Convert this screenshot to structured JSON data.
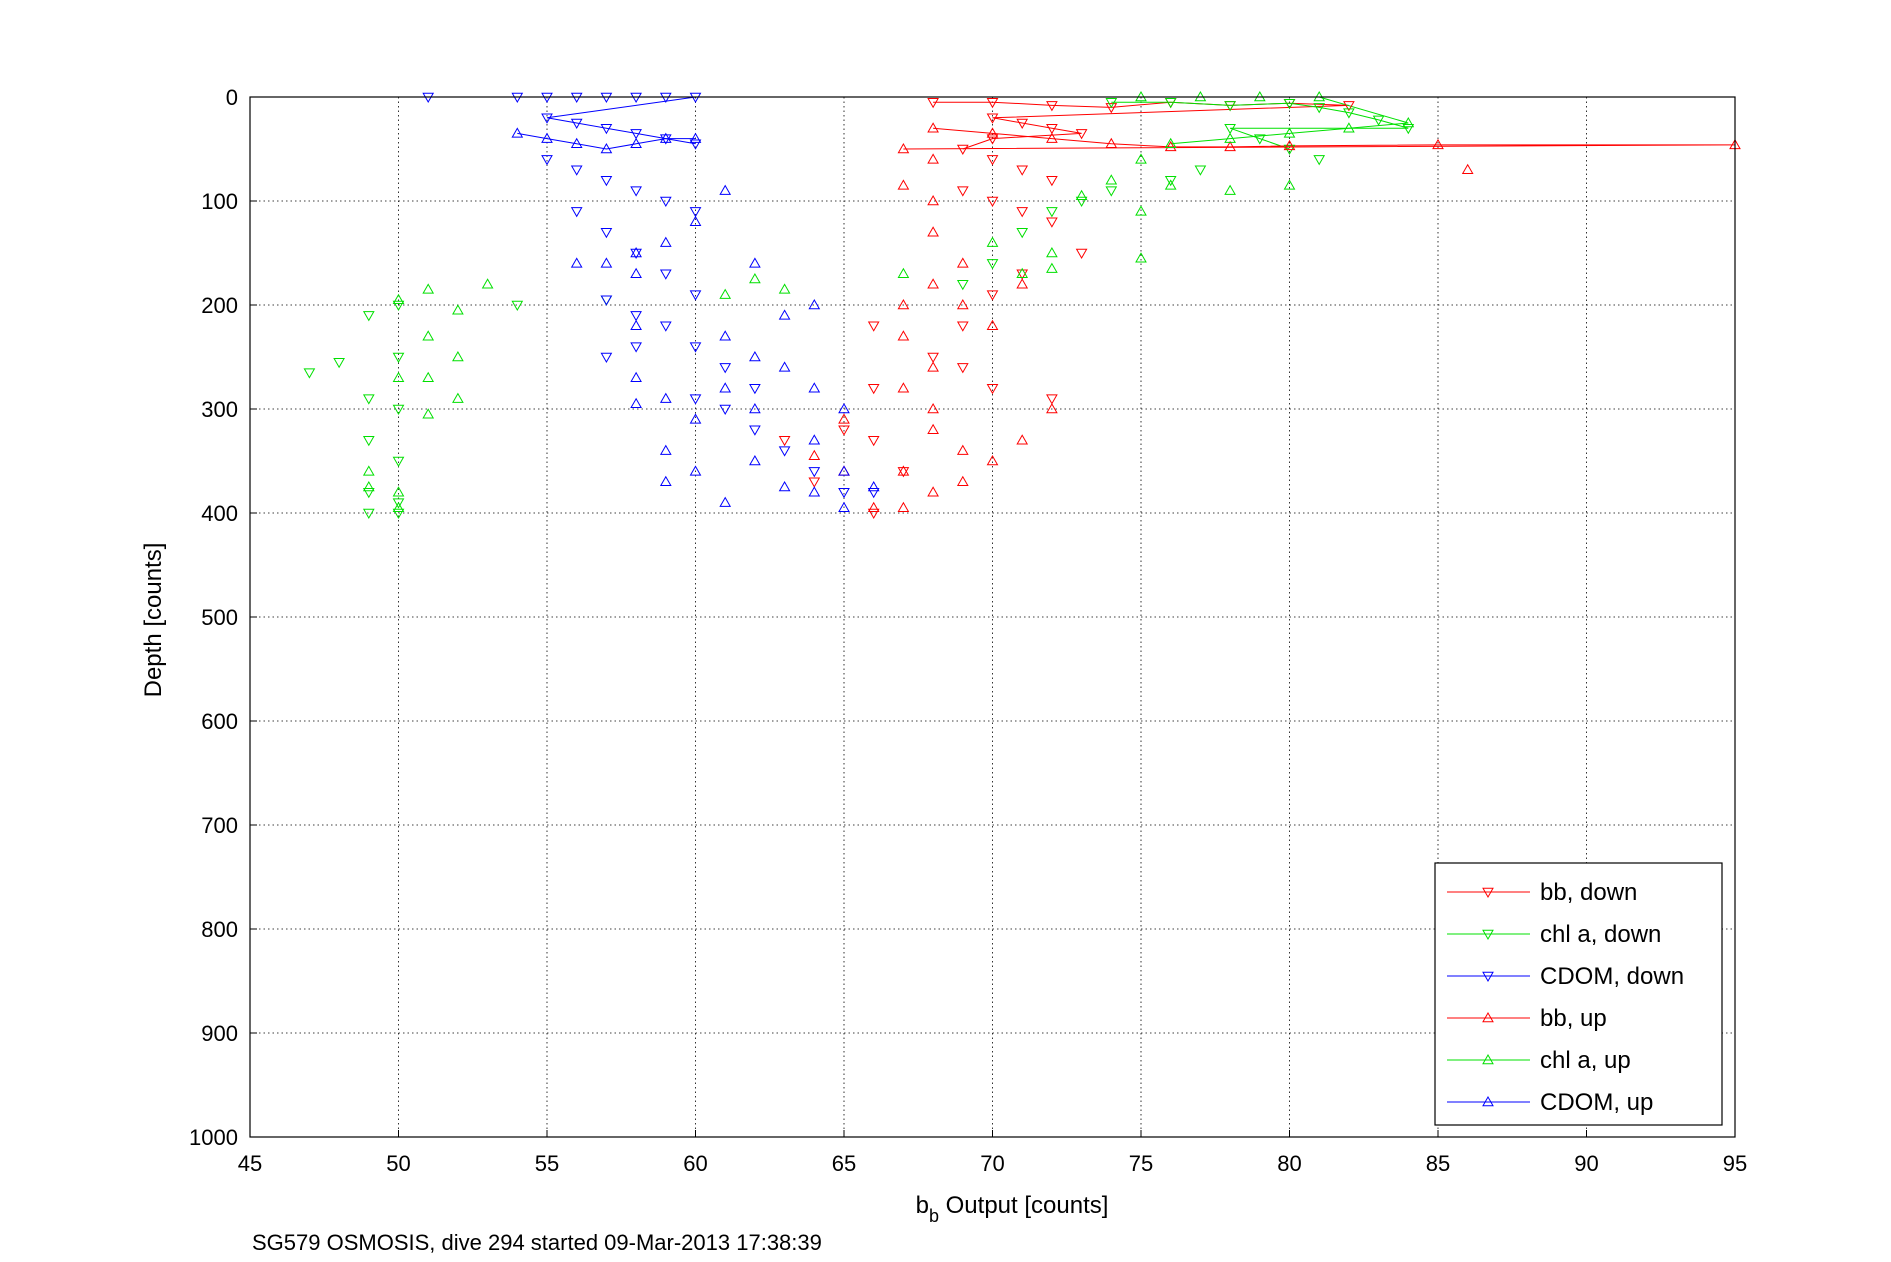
{
  "chart_data": {
    "type": "scatter",
    "title": "",
    "xlabel_main": "b",
    "xlabel_sub": "b",
    "xlabel_rest": " Output [counts]",
    "ylabel": "Depth [counts]",
    "footer": "SG579 OSMOSIS, dive 294 started 09-Mar-2013 17:38:39",
    "xlim": [
      45,
      95
    ],
    "ylim": [
      0,
      1000
    ],
    "y_reversed": true,
    "grid": true,
    "legend_position": "bottom-right",
    "x_ticks": [
      "45",
      "50",
      "55",
      "60",
      "65",
      "70",
      "75",
      "80",
      "85",
      "90",
      "95"
    ],
    "y_ticks": [
      "0",
      "100",
      "200",
      "300",
      "400",
      "500",
      "600",
      "700",
      "800",
      "900",
      "1000"
    ],
    "colors": {
      "bb": "#ff0000",
      "chl": "#00e000",
      "cdom": "#0000ff"
    },
    "series": [
      {
        "name": "bb, down",
        "color": "#ff0000",
        "marker": "triangle-down",
        "points": [
          [
            68,
            5
          ],
          [
            70,
            5
          ],
          [
            72,
            8
          ],
          [
            74,
            10
          ],
          [
            76,
            5
          ],
          [
            78,
            8
          ],
          [
            80,
            6
          ],
          [
            82,
            8
          ],
          [
            70,
            20
          ],
          [
            71,
            25
          ],
          [
            72,
            30
          ],
          [
            73,
            35
          ],
          [
            70,
            40
          ],
          [
            69,
            50
          ],
          [
            70,
            60
          ],
          [
            71,
            70
          ],
          [
            72,
            80
          ],
          [
            69,
            90
          ],
          [
            70,
            100
          ],
          [
            71,
            110
          ],
          [
            72,
            120
          ],
          [
            73,
            150
          ],
          [
            71,
            170
          ],
          [
            70,
            190
          ],
          [
            69,
            220
          ],
          [
            68,
            250
          ],
          [
            69,
            260
          ],
          [
            70,
            280
          ],
          [
            72,
            290
          ],
          [
            66,
            220
          ],
          [
            66,
            280
          ],
          [
            65,
            320
          ],
          [
            66,
            330
          ],
          [
            67,
            360
          ],
          [
            66,
            400
          ],
          [
            64,
            370
          ],
          [
            63,
            330
          ]
        ]
      },
      {
        "name": "chl a, down",
        "color": "#00e000",
        "marker": "triangle-down",
        "points": [
          [
            74,
            5
          ],
          [
            76,
            5
          ],
          [
            78,
            8
          ],
          [
            80,
            6
          ],
          [
            81,
            10
          ],
          [
            82,
            15
          ],
          [
            83,
            22
          ],
          [
            84,
            30
          ],
          [
            78,
            30
          ],
          [
            79,
            40
          ],
          [
            80,
            50
          ],
          [
            81,
            60
          ],
          [
            77,
            70
          ],
          [
            76,
            80
          ],
          [
            74,
            90
          ],
          [
            73,
            100
          ],
          [
            72,
            110
          ],
          [
            71,
            130
          ],
          [
            70,
            160
          ],
          [
            69,
            180
          ],
          [
            54,
            200
          ],
          [
            57,
            195
          ],
          [
            50,
            200
          ],
          [
            49,
            210
          ],
          [
            48,
            255
          ],
          [
            47,
            265
          ],
          [
            50,
            250
          ],
          [
            49,
            290
          ],
          [
            50,
            300
          ],
          [
            49,
            330
          ],
          [
            50,
            350
          ],
          [
            49,
            380
          ],
          [
            50,
            390
          ],
          [
            49,
            400
          ],
          [
            50,
            400
          ]
        ]
      },
      {
        "name": "CDOM, down",
        "color": "#0000ff",
        "marker": "triangle-down",
        "points": [
          [
            51,
            0
          ],
          [
            54,
            0
          ],
          [
            55,
            0
          ],
          [
            56,
            0
          ],
          [
            57,
            0
          ],
          [
            58,
            0
          ],
          [
            59,
            0
          ],
          [
            60,
            0
          ],
          [
            55,
            20
          ],
          [
            56,
            25
          ],
          [
            57,
            30
          ],
          [
            58,
            35
          ],
          [
            59,
            40
          ],
          [
            60,
            45
          ],
          [
            55,
            60
          ],
          [
            56,
            70
          ],
          [
            57,
            80
          ],
          [
            58,
            90
          ],
          [
            59,
            100
          ],
          [
            60,
            110
          ],
          [
            56,
            110
          ],
          [
            57,
            130
          ],
          [
            58,
            150
          ],
          [
            59,
            170
          ],
          [
            60,
            190
          ],
          [
            57,
            195
          ],
          [
            58,
            210
          ],
          [
            59,
            220
          ],
          [
            60,
            240
          ],
          [
            61,
            260
          ],
          [
            62,
            280
          ],
          [
            60,
            290
          ],
          [
            61,
            300
          ],
          [
            62,
            320
          ],
          [
            63,
            340
          ],
          [
            64,
            360
          ],
          [
            65,
            380
          ],
          [
            66,
            380
          ],
          [
            57,
            250
          ],
          [
            58,
            240
          ]
        ]
      },
      {
        "name": "bb, up",
        "color": "#ff0000",
        "marker": "triangle-up",
        "points": [
          [
            68,
            30
          ],
          [
            70,
            35
          ],
          [
            72,
            40
          ],
          [
            74,
            45
          ],
          [
            76,
            48
          ],
          [
            78,
            48
          ],
          [
            80,
            47
          ],
          [
            85,
            46
          ],
          [
            95,
            46
          ],
          [
            86,
            70
          ],
          [
            67,
            50
          ],
          [
            68,
            60
          ],
          [
            67,
            85
          ],
          [
            68,
            100
          ],
          [
            68,
            130
          ],
          [
            69,
            160
          ],
          [
            68,
            180
          ],
          [
            67,
            200
          ],
          [
            67,
            230
          ],
          [
            68,
            260
          ],
          [
            67,
            280
          ],
          [
            68,
            300
          ],
          [
            68,
            320
          ],
          [
            69,
            340
          ],
          [
            67,
            360
          ],
          [
            68,
            380
          ],
          [
            67,
            395
          ],
          [
            66,
            395
          ],
          [
            69,
            370
          ],
          [
            70,
            350
          ],
          [
            71,
            330
          ],
          [
            72,
            300
          ],
          [
            69,
            200
          ],
          [
            70,
            220
          ],
          [
            71,
            180
          ],
          [
            65,
            310
          ],
          [
            64,
            345
          ],
          [
            65,
            360
          ]
        ]
      },
      {
        "name": "chl a, up",
        "color": "#00e000",
        "marker": "triangle-up",
        "points": [
          [
            75,
            0
          ],
          [
            77,
            0
          ],
          [
            79,
            0
          ],
          [
            81,
            0
          ],
          [
            84,
            25
          ],
          [
            82,
            30
          ],
          [
            80,
            35
          ],
          [
            78,
            40
          ],
          [
            76,
            45
          ],
          [
            75,
            60
          ],
          [
            74,
            80
          ],
          [
            76,
            85
          ],
          [
            78,
            90
          ],
          [
            80,
            85
          ],
          [
            75,
            110
          ],
          [
            75,
            155
          ],
          [
            73,
            95
          ],
          [
            72,
            150
          ],
          [
            72,
            165
          ],
          [
            71,
            170
          ],
          [
            70,
            140
          ],
          [
            61,
            190
          ],
          [
            62,
            175
          ],
          [
            63,
            185
          ],
          [
            67,
            170
          ],
          [
            53,
            180
          ],
          [
            51,
            185
          ],
          [
            50,
            195
          ],
          [
            52,
            205
          ],
          [
            51,
            230
          ],
          [
            52,
            250
          ],
          [
            51,
            270
          ],
          [
            52,
            290
          ],
          [
            51,
            305
          ],
          [
            50,
            270
          ],
          [
            49,
            360
          ],
          [
            49,
            375
          ],
          [
            50,
            380
          ],
          [
            50,
            395
          ]
        ]
      },
      {
        "name": "CDOM, up",
        "color": "#0000ff",
        "marker": "triangle-up",
        "points": [
          [
            54,
            35
          ],
          [
            55,
            40
          ],
          [
            56,
            45
          ],
          [
            57,
            50
          ],
          [
            58,
            45
          ],
          [
            59,
            40
          ],
          [
            60,
            40
          ],
          [
            61,
            90
          ],
          [
            62,
            160
          ],
          [
            63,
            210
          ],
          [
            64,
            200
          ],
          [
            56,
            160
          ],
          [
            58,
            170
          ],
          [
            58,
            220
          ],
          [
            61,
            230
          ],
          [
            62,
            250
          ],
          [
            63,
            260
          ],
          [
            64,
            280
          ],
          [
            65,
            300
          ],
          [
            64,
            330
          ],
          [
            65,
            360
          ],
          [
            66,
            375
          ],
          [
            62,
            350
          ],
          [
            63,
            375
          ],
          [
            64,
            380
          ],
          [
            65,
            395
          ],
          [
            61,
            390
          ],
          [
            60,
            360
          ],
          [
            59,
            290
          ],
          [
            58,
            295
          ],
          [
            58,
            270
          ],
          [
            59,
            340
          ],
          [
            59,
            370
          ],
          [
            60,
            310
          ],
          [
            61,
            280
          ],
          [
            62,
            300
          ],
          [
            57,
            160
          ],
          [
            58,
            150
          ],
          [
            59,
            140
          ],
          [
            60,
            120
          ]
        ]
      }
    ]
  }
}
